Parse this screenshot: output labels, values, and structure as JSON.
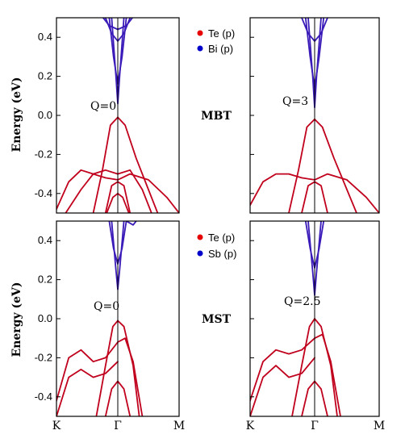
{
  "figure": {
    "colors": {
      "te": "#e60000",
      "second": "#0000cc",
      "band_red": "#c0001c",
      "band_blue": "#3a1ab8",
      "axis": "#000000"
    }
  },
  "chart_data": [
    {
      "type": "line",
      "panel": "top-left",
      "annotation": "Q=0",
      "ylabel": "Energy (eV)",
      "ylim": [
        -0.5,
        0.5
      ],
      "yticks": [
        "0.4",
        "0.2",
        "0.0",
        "-0.2",
        "-0.4"
      ],
      "xticks": [],
      "series": [
        {
          "x": [
            -1.0,
            -0.8,
            -0.6,
            -0.4,
            -0.2,
            0.0
          ],
          "y": [
            -0.48,
            -0.34,
            -0.28,
            -0.3,
            -0.32,
            -0.33
          ]
        },
        {
          "x": [
            -0.85,
            -0.6,
            -0.4,
            -0.2,
            0.0
          ],
          "y": [
            -0.5,
            -0.38,
            -0.3,
            -0.28,
            -0.3
          ]
        },
        {
          "x": [
            -0.4,
            -0.25,
            -0.12,
            0.0
          ],
          "y": [
            -0.5,
            -0.28,
            -0.05,
            -0.01
          ]
        },
        {
          "x": [
            0.0,
            0.12,
            0.3,
            0.5,
            0.65
          ],
          "y": [
            -0.01,
            -0.05,
            -0.22,
            -0.38,
            -0.5
          ]
        },
        {
          "x": [
            0.0,
            0.2,
            0.5,
            0.8,
            1.0
          ],
          "y": [
            -0.33,
            -0.3,
            -0.33,
            -0.42,
            -0.5
          ]
        },
        {
          "x": [
            0.0,
            0.2,
            0.4,
            0.55
          ],
          "y": [
            -0.3,
            -0.28,
            -0.38,
            -0.5
          ]
        },
        {
          "x": [
            -0.2,
            -0.1,
            0.0,
            0.1,
            0.2
          ],
          "y": [
            -0.5,
            -0.36,
            -0.34,
            -0.36,
            -0.5
          ]
        },
        {
          "x": [
            -0.18,
            -0.08,
            0.0,
            0.08,
            0.18
          ],
          "y": [
            -0.5,
            -0.42,
            -0.4,
            -0.42,
            -0.5
          ]
        },
        {
          "x": [
            -0.1,
            -0.03,
            0.0,
            0.03,
            0.1
          ],
          "y": [
            0.5,
            0.2,
            0.06,
            0.2,
            0.5
          ]
        },
        {
          "x": [
            -0.14,
            -0.07,
            0.0,
            0.07,
            0.14
          ],
          "y": [
            0.5,
            0.3,
            0.16,
            0.3,
            0.5
          ]
        },
        {
          "x": [
            -0.2,
            -0.1,
            0.0,
            0.1,
            0.2
          ],
          "y": [
            0.5,
            0.42,
            0.38,
            0.42,
            0.5
          ]
        },
        {
          "x": [
            -0.24,
            -0.14,
            0.0,
            0.14,
            0.24
          ],
          "y": [
            0.5,
            0.46,
            0.44,
            0.46,
            0.5
          ]
        }
      ]
    },
    {
      "type": "line",
      "panel": "top-right",
      "annotation": "Q=3",
      "ylim": [
        -0.5,
        0.5
      ],
      "series": [
        {
          "x": [
            -1.0,
            -0.8,
            -0.6,
            -0.4,
            -0.2,
            0.0
          ],
          "y": [
            -0.46,
            -0.34,
            -0.3,
            -0.3,
            -0.32,
            -0.33
          ]
        },
        {
          "x": [
            -0.4,
            -0.25,
            -0.12,
            0.0
          ],
          "y": [
            -0.5,
            -0.28,
            -0.06,
            -0.02
          ]
        },
        {
          "x": [
            0.0,
            0.12,
            0.3,
            0.5,
            0.65
          ],
          "y": [
            -0.02,
            -0.06,
            -0.22,
            -0.38,
            -0.5
          ]
        },
        {
          "x": [
            0.0,
            0.2,
            0.5,
            0.8,
            1.0
          ],
          "y": [
            -0.33,
            -0.3,
            -0.33,
            -0.42,
            -0.5
          ]
        },
        {
          "x": [
            -0.2,
            -0.1,
            0.0,
            0.1,
            0.2
          ],
          "y": [
            -0.5,
            -0.36,
            -0.34,
            -0.36,
            -0.5
          ]
        },
        {
          "x": [
            -0.1,
            -0.03,
            0.0,
            0.03,
            0.1
          ],
          "y": [
            0.5,
            0.2,
            0.04,
            0.2,
            0.5
          ]
        },
        {
          "x": [
            -0.14,
            -0.07,
            0.0,
            0.07,
            0.14
          ],
          "y": [
            0.5,
            0.3,
            0.14,
            0.3,
            0.5
          ]
        },
        {
          "x": [
            -0.2,
            -0.1,
            0.0,
            0.1,
            0.2
          ],
          "y": [
            0.5,
            0.42,
            0.38,
            0.42,
            0.5
          ]
        }
      ]
    },
    {
      "type": "line",
      "panel": "bottom-left",
      "annotation": "Q=0",
      "ylabel": "Energy (eV)",
      "ylim": [
        -0.5,
        0.5
      ],
      "yticks": [
        "0.4",
        "0.2",
        "0.0",
        "-0.2",
        "-0.4"
      ],
      "xticks": [
        "K",
        "Γ",
        "M"
      ],
      "series": [
        {
          "x": [
            -1.0,
            -0.8,
            -0.6,
            -0.4,
            -0.2,
            0.0
          ],
          "y": [
            -0.42,
            -0.2,
            -0.16,
            -0.22,
            -0.2,
            -0.12
          ]
        },
        {
          "x": [
            -1.0,
            -0.8,
            -0.6,
            -0.4,
            -0.2,
            0.0
          ],
          "y": [
            -0.5,
            -0.3,
            -0.26,
            -0.3,
            -0.28,
            -0.22
          ]
        },
        {
          "x": [
            -0.35,
            -0.2,
            -0.08,
            0.0
          ],
          "y": [
            -0.5,
            -0.24,
            -0.04,
            -0.01
          ]
        },
        {
          "x": [
            0.0,
            0.1,
            0.25,
            0.35
          ],
          "y": [
            -0.01,
            -0.04,
            -0.24,
            -0.5
          ]
        },
        {
          "x": [
            0.0,
            0.12,
            0.25,
            0.4
          ],
          "y": [
            -0.12,
            -0.1,
            -0.22,
            -0.5
          ]
        },
        {
          "x": [
            -0.2,
            -0.1,
            0.0,
            0.1,
            0.2
          ],
          "y": [
            -0.5,
            -0.36,
            -0.32,
            -0.36,
            -0.5
          ]
        },
        {
          "x": [
            -0.1,
            -0.03,
            0.0,
            0.03,
            0.1
          ],
          "y": [
            0.5,
            0.25,
            0.15,
            0.25,
            0.5
          ]
        },
        {
          "x": [
            -0.14,
            -0.07,
            0.0,
            0.07,
            0.14
          ],
          "y": [
            0.5,
            0.36,
            0.28,
            0.36,
            0.5
          ]
        },
        {
          "x": [
            0.14,
            0.25,
            0.35
          ],
          "y": [
            0.5,
            0.48,
            0.52
          ]
        }
      ]
    },
    {
      "type": "line",
      "panel": "bottom-right",
      "annotation": "Q=2.5",
      "ylim": [
        -0.5,
        0.5
      ],
      "xticks": [
        "K",
        "Γ",
        "M"
      ],
      "series": [
        {
          "x": [
            -1.0,
            -0.8,
            -0.6,
            -0.4,
            -0.2,
            0.0
          ],
          "y": [
            -0.42,
            -0.22,
            -0.16,
            -0.18,
            -0.16,
            -0.1
          ]
        },
        {
          "x": [
            -1.0,
            -0.8,
            -0.6,
            -0.4,
            -0.2,
            0.0
          ],
          "y": [
            -0.5,
            -0.3,
            -0.24,
            -0.3,
            -0.28,
            -0.2
          ]
        },
        {
          "x": [
            -0.35,
            -0.2,
            -0.08,
            0.0
          ],
          "y": [
            -0.5,
            -0.24,
            -0.04,
            0.0
          ]
        },
        {
          "x": [
            0.0,
            0.1,
            0.25,
            0.35
          ],
          "y": [
            0.0,
            -0.04,
            -0.24,
            -0.5
          ]
        },
        {
          "x": [
            0.0,
            0.12,
            0.25,
            0.4
          ],
          "y": [
            -0.1,
            -0.08,
            -0.22,
            -0.5
          ]
        },
        {
          "x": [
            -0.2,
            -0.1,
            0.0,
            0.1,
            0.2
          ],
          "y": [
            -0.5,
            -0.36,
            -0.32,
            -0.36,
            -0.5
          ]
        },
        {
          "x": [
            -0.1,
            -0.03,
            0.0,
            0.03,
            0.1
          ],
          "y": [
            0.5,
            0.24,
            0.12,
            0.24,
            0.5
          ]
        },
        {
          "x": [
            -0.14,
            -0.07,
            0.0,
            0.07,
            0.14
          ],
          "y": [
            0.5,
            0.36,
            0.26,
            0.36,
            0.5
          ]
        }
      ]
    }
  ],
  "legends": [
    {
      "entries": [
        {
          "label": "Te (p)",
          "color": "#e60000"
        },
        {
          "label": "Bi (p)",
          "color": "#0000cc"
        }
      ],
      "material": "MBT"
    },
    {
      "entries": [
        {
          "label": "Te (p)",
          "color": "#e60000"
        },
        {
          "label": "Sb (p)",
          "color": "#0000cc"
        }
      ],
      "material": "MST"
    }
  ]
}
